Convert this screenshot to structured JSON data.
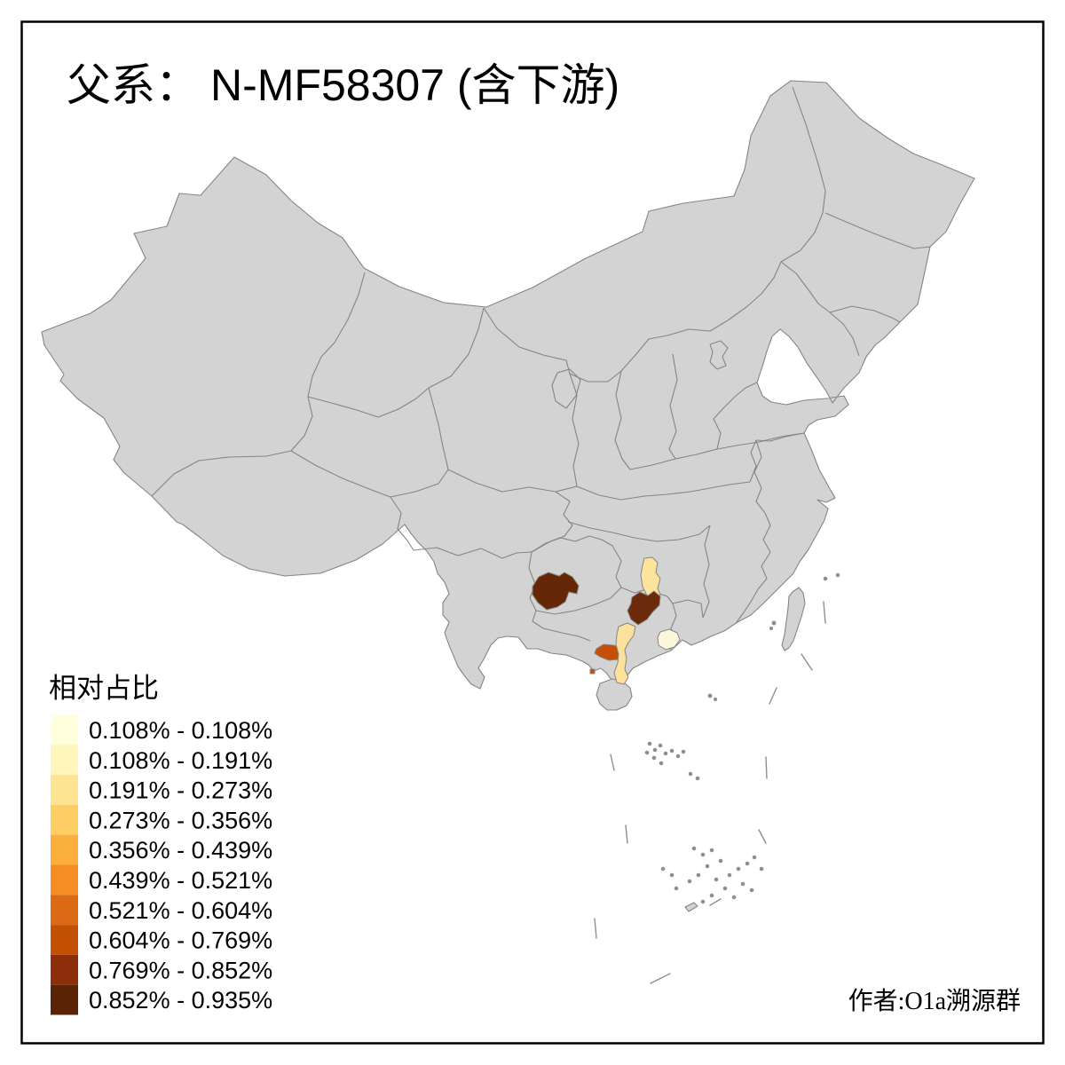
{
  "figure": {
    "title": {
      "prefix": "父系：",
      "main": "N-MF58307 (含下游)"
    },
    "credit": "作者:O1a溯源群"
  },
  "legend": {
    "title": "相对占比",
    "items": [
      {
        "label": "0.108% - 0.108%",
        "color": "#FFFFDE"
      },
      {
        "label": "0.108% - 0.191%",
        "color": "#FEF5BB"
      },
      {
        "label": "0.191% - 0.273%",
        "color": "#FEE491"
      },
      {
        "label": "0.273% - 0.356%",
        "color": "#FECE65"
      },
      {
        "label": "0.356% - 0.439%",
        "color": "#FDAF3D"
      },
      {
        "label": "0.439% - 0.521%",
        "color": "#F68C24"
      },
      {
        "label": "0.521% - 0.604%",
        "color": "#DC6913"
      },
      {
        "label": "0.604% - 0.769%",
        "color": "#C35004"
      },
      {
        "label": "0.769% - 0.852%",
        "color": "#8C2E09"
      },
      {
        "label": "0.852% - 0.935%",
        "color": "#5C2406"
      }
    ]
  },
  "map": {
    "land_color": "#D3D3D3",
    "boundary_color": "#858585",
    "background_color": "#FFFFFF",
    "frame_color": "#000000",
    "highlighted_regions": [
      {
        "name": "southwest-guizhou",
        "color": "#662706",
        "legend_class": "0.852% - 0.935%"
      },
      {
        "name": "west-hunan",
        "color": "#FCE49C",
        "legend_class": "0.191% - 0.273%"
      },
      {
        "name": "hunan-guangxi-border",
        "color": "#6B2A0C",
        "legend_class": "0.769% - 0.852%"
      },
      {
        "name": "south-guangxi-coast",
        "color": "#C44F06",
        "legend_class": "0.604% - 0.769%"
      },
      {
        "name": "leizhou-peninsula",
        "color": "#FCE19C",
        "legend_class": "0.191% - 0.273%"
      },
      {
        "name": "west-guangdong",
        "color": "#FBF7DC",
        "legend_class": "0.108% - 0.108%"
      },
      {
        "name": "coastal-islet",
        "color": "#C44F06",
        "legend_class": "0.604% - 0.769%"
      }
    ]
  }
}
